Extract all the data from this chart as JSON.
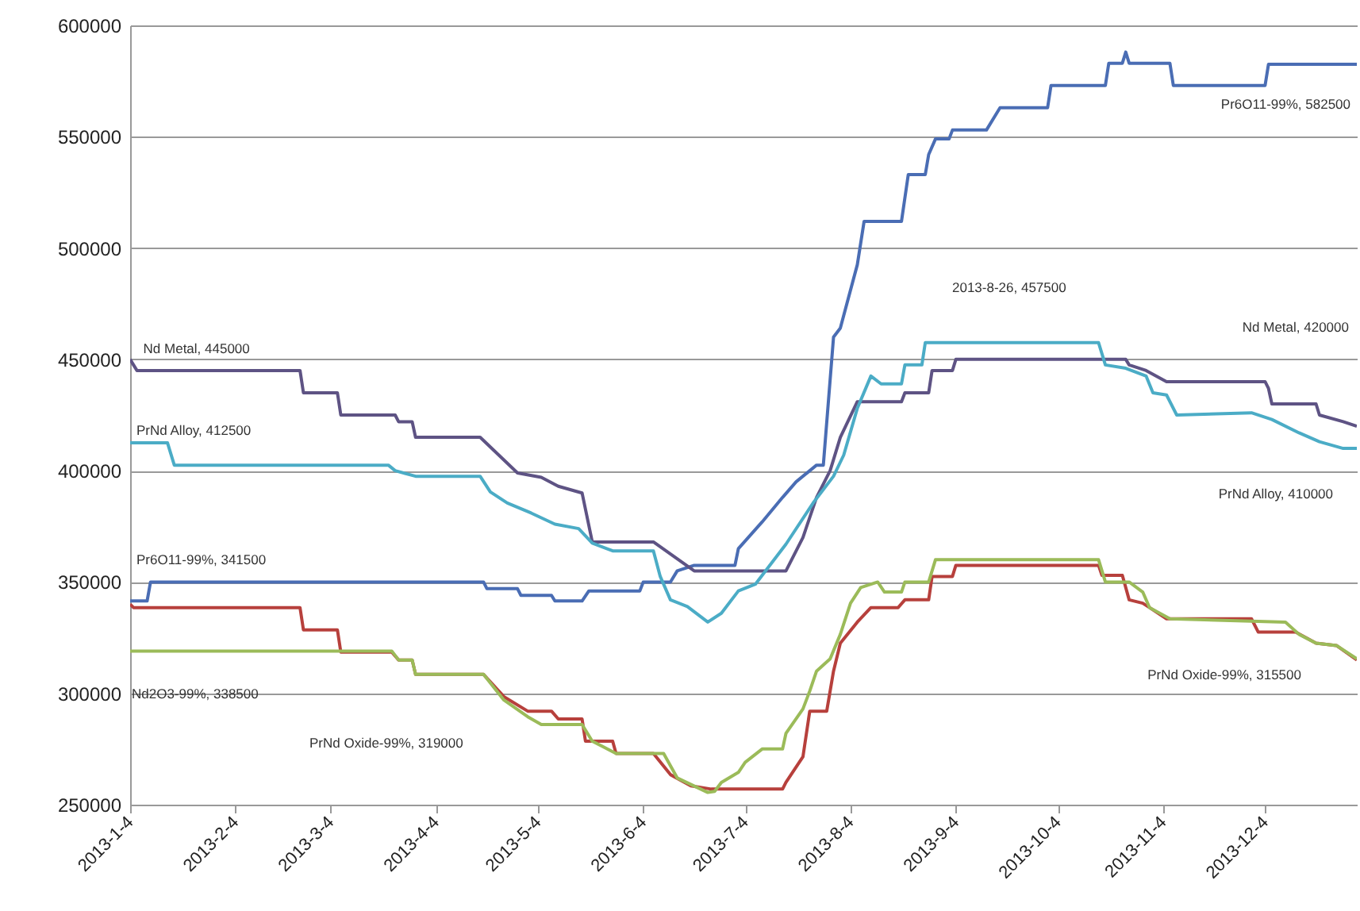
{
  "chart_data": {
    "type": "line",
    "grid": "y",
    "xlim": [
      "2013-01-04",
      "2013-12-31"
    ],
    "ylim": [
      250000,
      600000
    ],
    "yticks": [
      250000,
      300000,
      350000,
      400000,
      450000,
      500000,
      550000,
      600000
    ],
    "xticks": [
      {
        "value": "2013-01-04",
        "label": "2013-1-4"
      },
      {
        "value": "2013-02-04",
        "label": "2013-2-4"
      },
      {
        "value": "2013-03-04",
        "label": "2013-3-4"
      },
      {
        "value": "2013-04-04",
        "label": "2013-4-4"
      },
      {
        "value": "2013-05-04",
        "label": "2013-5-4"
      },
      {
        "value": "2013-06-04",
        "label": "2013-6-4"
      },
      {
        "value": "2013-07-04",
        "label": "2013-7-4"
      },
      {
        "value": "2013-08-04",
        "label": "2013-8-4"
      },
      {
        "value": "2013-09-04",
        "label": "2013-9-4"
      },
      {
        "value": "2013-10-04",
        "label": "2013-10-4"
      },
      {
        "value": "2013-11-04",
        "label": "2013-11-4"
      },
      {
        "value": "2013-12-04",
        "label": "2013-12-4"
      }
    ],
    "series": [
      {
        "color": "#4a6db4",
        "x": [
          "2013-01-04",
          "2013-01-09",
          "2013-01-10",
          "2013-04-18",
          "2013-04-19",
          "2013-04-28",
          "2013-04-29",
          "2013-05-08",
          "2013-05-09",
          "2013-05-17",
          "2013-05-19",
          "2013-06-03",
          "2013-06-04",
          "2013-06-12",
          "2013-06-14",
          "2013-06-19",
          "2013-07-01",
          "2013-07-02",
          "2013-07-09",
          "2013-07-15",
          "2013-07-19",
          "2013-07-25",
          "2013-07-27",
          "2013-07-30",
          "2013-08-01",
          "2013-08-06",
          "2013-08-08",
          "2013-08-19",
          "2013-08-21",
          "2013-08-26",
          "2013-08-27",
          "2013-08-29",
          "2013-09-02",
          "2013-09-03",
          "2013-09-13",
          "2013-09-17",
          "2013-10-01",
          "2013-10-02",
          "2013-10-18",
          "2013-10-19",
          "2013-10-23",
          "2013-10-24",
          "2013-10-25",
          "2013-11-06",
          "2013-11-07",
          "2013-12-04",
          "2013-12-05",
          "2013-12-31"
        ],
        "values": [
          341500,
          341500,
          350000,
          350000,
          347000,
          347000,
          344000,
          344000,
          341500,
          341500,
          346000,
          346000,
          350000,
          350000,
          355000,
          357500,
          357500,
          365000,
          377000,
          388000,
          395000,
          402500,
          402500,
          460000,
          464000,
          492500,
          512000,
          512000,
          533000,
          533000,
          542000,
          549000,
          549000,
          553000,
          553000,
          563000,
          563000,
          573000,
          573000,
          583000,
          583000,
          588000,
          583000,
          583000,
          573000,
          573000,
          582500,
          582500
        ]
      },
      {
        "color": "#5e5384",
        "x": [
          "2013-01-04",
          "2013-01-06",
          "2013-02-23",
          "2013-02-24",
          "2013-03-06",
          "2013-03-07",
          "2013-03-23",
          "2013-03-24",
          "2013-03-28",
          "2013-03-29",
          "2013-04-17",
          "2013-04-28",
          "2013-05-05",
          "2013-05-10",
          "2013-05-17",
          "2013-05-20",
          "2013-06-07",
          "2013-06-19",
          "2013-07-16",
          "2013-07-21",
          "2013-07-25",
          "2013-07-29",
          "2013-08-01",
          "2013-08-06",
          "2013-08-19",
          "2013-08-20",
          "2013-08-27",
          "2013-08-28",
          "2013-09-03",
          "2013-09-04",
          "2013-10-24",
          "2013-10-25",
          "2013-10-30",
          "2013-11-05",
          "2013-12-04",
          "2013-12-05",
          "2013-12-06",
          "2013-12-19",
          "2013-12-20",
          "2013-12-27",
          "2013-12-31"
        ],
        "values": [
          450000,
          445000,
          445000,
          435000,
          435000,
          425000,
          425000,
          422000,
          422000,
          415000,
          415000,
          399000,
          397000,
          393000,
          390000,
          368000,
          368000,
          355000,
          355000,
          370000,
          388000,
          400000,
          415000,
          431000,
          431000,
          435000,
          435000,
          445000,
          445000,
          450000,
          450000,
          447500,
          445000,
          440000,
          440000,
          437000,
          430000,
          430000,
          425000,
          422000,
          420000
        ]
      },
      {
        "color": "#4bacc6",
        "x": [
          "2013-01-04",
          "2013-01-15",
          "2013-01-17",
          "2013-03-21",
          "2013-03-23",
          "2013-03-29",
          "2013-04-17",
          "2013-04-20",
          "2013-04-25",
          "2013-05-02",
          "2013-05-09",
          "2013-05-16",
          "2013-05-20",
          "2013-05-26",
          "2013-06-07",
          "2013-06-09",
          "2013-06-12",
          "2013-06-17",
          "2013-06-23",
          "2013-06-27",
          "2013-07-02",
          "2013-07-07",
          "2013-07-16",
          "2013-07-24",
          "2013-07-30",
          "2013-08-02",
          "2013-08-06",
          "2013-08-10",
          "2013-08-13",
          "2013-08-19",
          "2013-08-20",
          "2013-08-25",
          "2013-08-26",
          "2013-10-16",
          "2013-10-18",
          "2013-10-24",
          "2013-10-30",
          "2013-11-01",
          "2013-11-05",
          "2013-11-08",
          "2013-11-30",
          "2013-12-06",
          "2013-12-14",
          "2013-12-20",
          "2013-12-27",
          "2013-12-31"
        ],
        "values": [
          412500,
          412500,
          402500,
          402500,
          400000,
          397500,
          397500,
          390500,
          385500,
          381000,
          376000,
          374000,
          367500,
          364000,
          364000,
          352500,
          342000,
          339000,
          332000,
          336000,
          346000,
          349000,
          367000,
          385500,
          397500,
          407000,
          428000,
          442500,
          439000,
          439000,
          447500,
          447500,
          457500,
          457500,
          447500,
          446000,
          442500,
          435000,
          434000,
          425000,
          426000,
          423000,
          417000,
          413000,
          410000,
          410000
        ]
      },
      {
        "color": "#b7403c",
        "x": [
          "2013-01-04",
          "2013-01-05",
          "2013-02-23",
          "2013-02-24",
          "2013-03-06",
          "2013-03-07",
          "2013-03-22",
          "2013-03-24",
          "2013-03-28",
          "2013-03-29",
          "2013-04-18",
          "2013-04-24",
          "2013-05-01",
          "2013-05-08",
          "2013-05-10",
          "2013-05-17",
          "2013-05-18",
          "2013-05-26",
          "2013-05-27",
          "2013-06-07",
          "2013-06-12",
          "2013-06-18",
          "2013-06-24",
          "2013-07-15",
          "2013-07-16",
          "2013-07-21",
          "2013-07-23",
          "2013-07-28",
          "2013-07-30",
          "2013-08-01",
          "2013-08-06",
          "2013-08-10",
          "2013-08-18",
          "2013-08-20",
          "2013-08-27",
          "2013-08-28",
          "2013-09-03",
          "2013-09-04",
          "2013-10-16",
          "2013-10-17",
          "2013-10-23",
          "2013-10-25",
          "2013-10-29",
          "2013-10-31",
          "2013-11-05",
          "2013-11-30",
          "2013-12-02",
          "2013-12-13",
          "2013-12-19",
          "2013-12-25",
          "2013-12-31"
        ],
        "values": [
          340000,
          338500,
          338500,
          328500,
          328500,
          318500,
          318500,
          315000,
          315000,
          308500,
          308500,
          298500,
          292000,
          292000,
          288500,
          288500,
          278500,
          278500,
          273000,
          273000,
          263500,
          258500,
          257000,
          257000,
          260000,
          271500,
          292000,
          292000,
          310000,
          322500,
          332000,
          338500,
          338500,
          342000,
          342000,
          352500,
          352500,
          357500,
          357500,
          353000,
          353000,
          342000,
          340500,
          338500,
          333500,
          333500,
          327500,
          327500,
          322500,
          321500,
          315000
        ]
      },
      {
        "color": "#9bbb59",
        "x": [
          "2013-01-04",
          "2013-03-22",
          "2013-03-24",
          "2013-03-28",
          "2013-03-29",
          "2013-04-18",
          "2013-04-24",
          "2013-05-01",
          "2013-05-05",
          "2013-05-17",
          "2013-05-20",
          "2013-05-27",
          "2013-06-10",
          "2013-06-14",
          "2013-06-23",
          "2013-06-25",
          "2013-06-27",
          "2013-07-02",
          "2013-07-04",
          "2013-07-09",
          "2013-07-15",
          "2013-07-16",
          "2013-07-21",
          "2013-07-23",
          "2013-07-25",
          "2013-07-29",
          "2013-08-01",
          "2013-08-04",
          "2013-08-07",
          "2013-08-12",
          "2013-08-14",
          "2013-08-19",
          "2013-08-20",
          "2013-08-27",
          "2013-08-29",
          "2013-10-16",
          "2013-10-18",
          "2013-10-25",
          "2013-10-29",
          "2013-10-31",
          "2013-11-06",
          "2013-12-10",
          "2013-12-14",
          "2013-12-19",
          "2013-12-25",
          "2013-12-31"
        ],
        "values": [
          319000,
          319000,
          315000,
          315000,
          308500,
          308500,
          297000,
          289500,
          286000,
          286000,
          278500,
          273000,
          273000,
          262000,
          255500,
          256000,
          260000,
          264500,
          269000,
          275000,
          275000,
          282000,
          293000,
          301000,
          310000,
          315500,
          326500,
          340500,
          347500,
          350000,
          345500,
          345500,
          350000,
          350000,
          360000,
          360000,
          350000,
          350000,
          345500,
          338500,
          333500,
          332000,
          326500,
          322500,
          321500,
          315500
        ]
      }
    ],
    "annotations": [
      {
        "text": "Nd Metal, 445000",
        "x": "2013-01-06",
        "y": 445000
      },
      {
        "text": "PrNd Alloy, 412500",
        "x": "2013-01-04",
        "y": 412500
      },
      {
        "text": "Pr6O11-99%, 341500",
        "x": "2013-01-04",
        "y": 341500
      },
      "Nd2O3-99%, 338500",
      "PrNd Oxide-99%, 319000",
      {
        "text": "Pr6O11-99%, 582500",
        "x": "2013-12-31",
        "y": 582500
      },
      "2013-8-26, 457500",
      "Nd Metal, 420000",
      "PrNd Alloy, 410000",
      "PrNd Oxide-99%, 315500"
    ]
  }
}
